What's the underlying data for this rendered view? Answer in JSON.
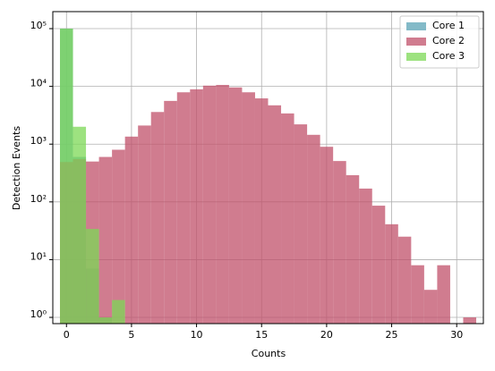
{
  "chart_data": {
    "type": "histogram",
    "xlabel": "Counts",
    "ylabel": "Detection Events",
    "bins": [
      -0.5,
      0.5,
      1.5,
      2.5,
      3.5,
      4.5,
      5.5,
      6.5,
      7.5,
      8.5,
      9.5,
      10.5,
      11.5,
      12.5,
      13.5,
      14.5,
      15.5,
      16.5,
      17.5,
      18.5,
      19.5,
      20.5,
      21.5,
      22.5,
      23.5,
      24.5,
      25.5,
      26.5,
      27.5,
      28.5,
      29.5,
      30.5,
      31.5
    ],
    "series": [
      {
        "name": "Core 1",
        "color": "#5aa3b5",
        "values": [
          100000,
          600,
          7,
          1,
          0,
          0,
          0,
          0,
          0,
          0,
          0,
          0,
          0,
          0,
          0,
          0,
          0,
          0,
          0,
          0,
          0,
          0,
          0,
          0,
          0,
          0,
          0,
          0,
          0,
          0,
          0,
          0
        ]
      },
      {
        "name": "Core 2",
        "color": "#c0506a",
        "values": [
          490,
          550,
          500,
          600,
          800,
          1350,
          2100,
          3600,
          5600,
          7900,
          8900,
          10300,
          10600,
          9600,
          7900,
          6200,
          4700,
          3400,
          2200,
          1450,
          900,
          510,
          290,
          170,
          86,
          41,
          25,
          8,
          3,
          8,
          0,
          1
        ]
      },
      {
        "name": "Core 3",
        "color": "#7cd855",
        "values": [
          100000,
          2000,
          34,
          1,
          2,
          0,
          0,
          0,
          0,
          0,
          0,
          0,
          0,
          0,
          0,
          0,
          0,
          0,
          0,
          0,
          0,
          0,
          0,
          0,
          0,
          0,
          0,
          0,
          0,
          0,
          0,
          0
        ]
      }
    ],
    "xlim": [
      -1.05,
      32.05
    ],
    "xticks": [
      0,
      5,
      10,
      15,
      20,
      25,
      30
    ],
    "ylim": [
      0.78,
      197000
    ],
    "log_y": true,
    "yticks": [
      {
        "value": 1,
        "label": "10⁰"
      },
      {
        "value": 10,
        "label": "10¹"
      },
      {
        "value": 100,
        "label": "10²"
      },
      {
        "value": 1000,
        "label": "10³"
      },
      {
        "value": 10000,
        "label": "10⁴"
      },
      {
        "value": 100000,
        "label": "10⁵"
      }
    ],
    "grid": true,
    "legend": "upper right"
  }
}
